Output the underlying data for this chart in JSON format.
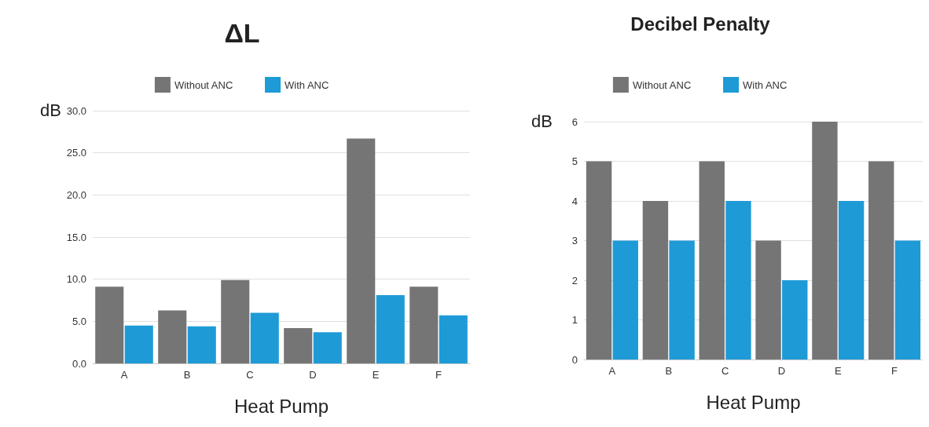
{
  "chart_data": [
    {
      "type": "bar",
      "title": "ΔL",
      "xlabel": "Heat Pump",
      "ylabel": "dB",
      "categories": [
        "A",
        "B",
        "C",
        "D",
        "E",
        "F"
      ],
      "series": [
        {
          "name": "Without ANC",
          "color": "#757575",
          "values": [
            9.1,
            6.3,
            9.9,
            4.2,
            26.7,
            9.1
          ]
        },
        {
          "name": "With ANC",
          "color": "#1e9bd7",
          "values": [
            4.5,
            4.4,
            6.0,
            3.7,
            8.1,
            5.7
          ]
        }
      ],
      "ylim": [
        0,
        30
      ],
      "yticks": [
        {
          "value": 0,
          "label": "0.0"
        },
        {
          "value": 5,
          "label": "5.0"
        },
        {
          "value": 10,
          "label": "10.0"
        },
        {
          "value": 15,
          "label": "15.0"
        },
        {
          "value": 20,
          "label": "20.0"
        },
        {
          "value": 25,
          "label": "25.0"
        },
        {
          "value": 30,
          "label": "30.0"
        }
      ],
      "grid": "y",
      "legend": "top"
    },
    {
      "type": "bar",
      "title": "Decibel Penalty",
      "xlabel": "Heat Pump",
      "ylabel": "dB",
      "categories": [
        "A",
        "B",
        "C",
        "D",
        "E",
        "F"
      ],
      "series": [
        {
          "name": "Without ANC",
          "color": "#757575",
          "values": [
            5,
            4,
            5,
            3,
            6,
            5
          ]
        },
        {
          "name": "With ANC",
          "color": "#1e9bd7",
          "values": [
            3,
            3,
            4,
            2,
            4,
            3
          ]
        }
      ],
      "ylim": [
        0,
        6
      ],
      "yticks": [
        0,
        1,
        2,
        3,
        4,
        5,
        6
      ],
      "grid": "y",
      "legend": "top"
    }
  ]
}
